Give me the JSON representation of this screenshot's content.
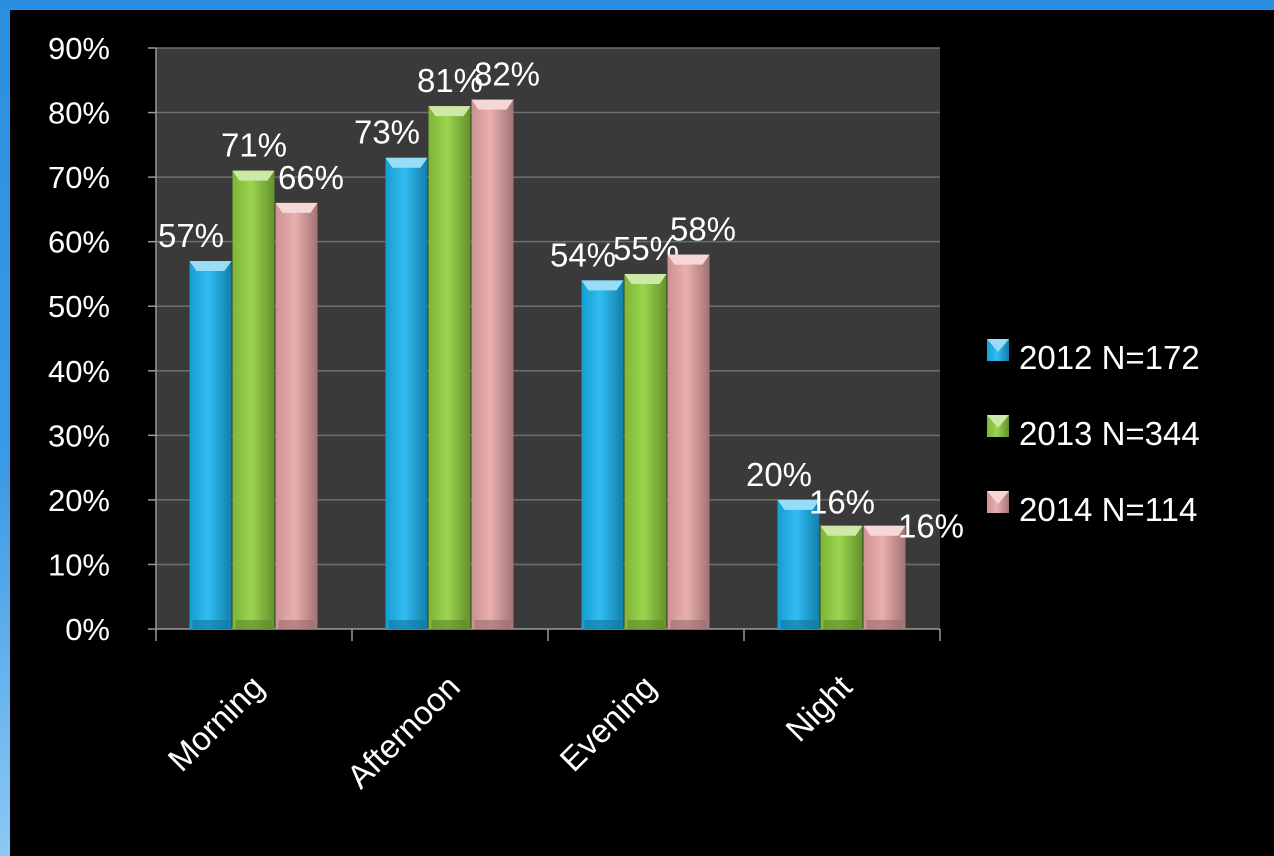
{
  "chart_data": {
    "type": "bar",
    "title": "",
    "xlabel": "",
    "ylabel": "",
    "categories": [
      "Morning",
      "Afternoon",
      "Evening",
      "Night"
    ],
    "series": [
      {
        "name": "2012 N=172",
        "values": [
          57,
          73,
          54,
          20
        ],
        "labels": [
          "57%",
          "73%",
          "54%",
          "20%"
        ],
        "color": "#1ab4f0"
      },
      {
        "name": "2013 N=344",
        "values": [
          71,
          81,
          55,
          16
        ],
        "labels": [
          "71%",
          "81%",
          "55%",
          "16%"
        ],
        "color": "#8fcf3c"
      },
      {
        "name": "2014 N=114",
        "values": [
          66,
          82,
          58,
          16
        ],
        "labels": [
          "66%",
          "82%",
          "58%",
          "16%"
        ],
        "color": "#e8a6a6"
      }
    ],
    "ylim": [
      0,
      90
    ],
    "yticks": [
      "0%",
      "10%",
      "20%",
      "30%",
      "40%",
      "50%",
      "60%",
      "70%",
      "80%",
      "90%"
    ],
    "grid": true,
    "legend_position": "right",
    "plot_background": "#3a3a3a",
    "page_background": "#000000"
  }
}
